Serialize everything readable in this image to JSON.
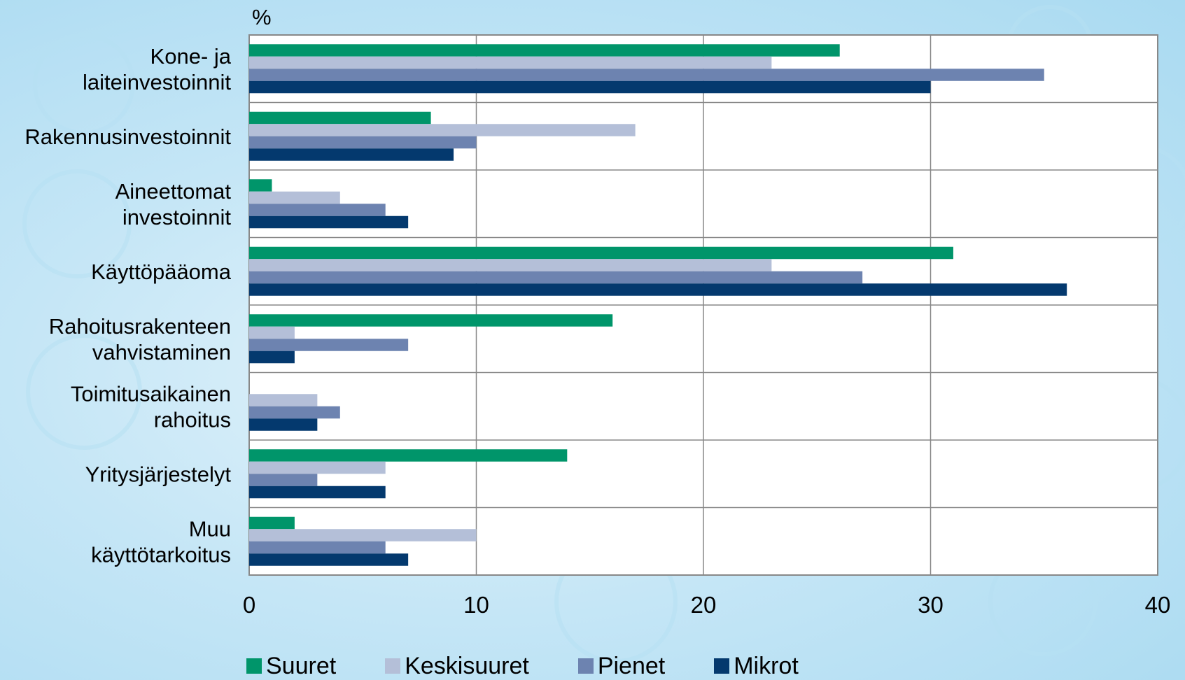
{
  "chart_data": {
    "type": "bar",
    "orientation": "horizontal",
    "unit_label": "%",
    "categories": [
      [
        "Kone- ja",
        "laiteinvestoinnit"
      ],
      [
        "Rakennusinvestoinnit"
      ],
      [
        "Aineettomat",
        "investoinnit"
      ],
      [
        "Käyttöpääoma"
      ],
      [
        "Rahoitusrakenteen",
        "vahvistaminen"
      ],
      [
        "Toimitusaikainen",
        "rahoitus"
      ],
      [
        "Yritysjärjestelyt"
      ],
      [
        "Muu",
        "käyttötarkoitus"
      ]
    ],
    "series": [
      {
        "name": "Suuret",
        "color": "#00956a",
        "values": [
          26,
          8,
          1,
          31,
          16,
          0,
          14,
          2
        ]
      },
      {
        "name": "Keskisuuret",
        "color": "#b4bfd8",
        "values": [
          23,
          17,
          4,
          23,
          2,
          3,
          6,
          10
        ]
      },
      {
        "name": "Pienet",
        "color": "#6d83b0",
        "values": [
          35,
          10,
          6,
          27,
          7,
          4,
          3,
          6
        ]
      },
      {
        "name": "Mikrot",
        "color": "#04396e",
        "values": [
          30,
          9,
          7,
          36,
          2,
          3,
          6,
          7
        ]
      }
    ],
    "xlim": [
      0,
      40
    ],
    "xticks": [
      0,
      10,
      20,
      30,
      40
    ],
    "grid": true,
    "legend_position": "bottom"
  }
}
